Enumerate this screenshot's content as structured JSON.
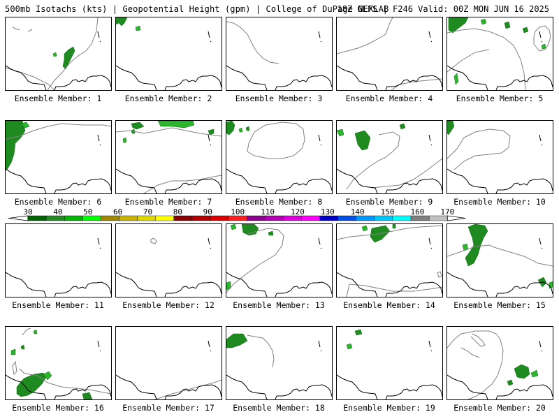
{
  "header": {
    "title_left": "500mb Isotachs (kts) | Geopotential Height (gpm) | College of DuPage NEXLAB",
    "title_right": "18Z GEFS | F246 Valid: 00Z MON JUN 16 2025"
  },
  "members": [
    {
      "label": "Ensemble Member: 1"
    },
    {
      "label": "Ensemble Member: 2"
    },
    {
      "label": "Ensemble Member: 3"
    },
    {
      "label": "Ensemble Member: 4"
    },
    {
      "label": "Ensemble Member: 5"
    },
    {
      "label": "Ensemble Member: 6"
    },
    {
      "label": "Ensemble Member: 7"
    },
    {
      "label": "Ensemble Member: 8"
    },
    {
      "label": "Ensemble Member: 9"
    },
    {
      "label": "Ensemble Member: 10"
    },
    {
      "label": "Ensemble Member: 11"
    },
    {
      "label": "Ensemble Member: 12"
    },
    {
      "label": "Ensemble Member: 13"
    },
    {
      "label": "Ensemble Member: 14"
    },
    {
      "label": "Ensemble Member: 15"
    },
    {
      "label": "Ensemble Member: 16"
    },
    {
      "label": "Ensemble Member: 17"
    },
    {
      "label": "Ensemble Member: 18"
    },
    {
      "label": "Ensemble Member: 19"
    },
    {
      "label": "Ensemble Member: 20"
    }
  ],
  "colorbar": {
    "ticks": [
      "30",
      "40",
      "50",
      "60",
      "70",
      "80",
      "90",
      "100",
      "110",
      "120",
      "130",
      "140",
      "150",
      "160",
      "170"
    ],
    "colors": [
      "#006400",
      "#228b22",
      "#00b400",
      "#00ff00",
      "#a08800",
      "#c8b400",
      "#dcd800",
      "#ffff00",
      "#8b0000",
      "#b40000",
      "#dc0000",
      "#ff2020",
      "#8b008b",
      "#b400b4",
      "#dc00dc",
      "#ff00ff",
      "#0000c8",
      "#0050e6",
      "#0096ff",
      "#00c8ff",
      "#00ffff",
      "#808080",
      "#c0c0c0"
    ]
  }
}
